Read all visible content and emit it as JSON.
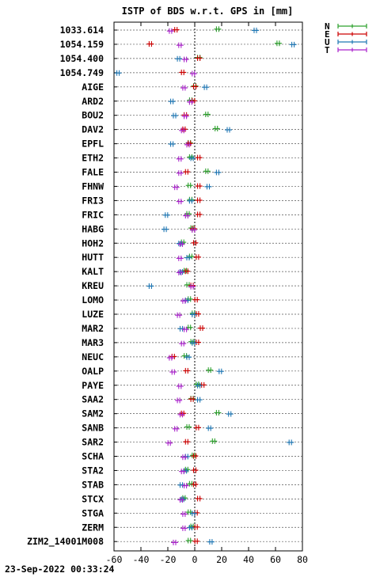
{
  "chart_data": {
    "type": "scatter",
    "title": "ISTP of BDS w.r.t. GPS in [mm]",
    "xlabel": "",
    "ylabel": "",
    "xlim": [
      -60,
      80
    ],
    "xticks": [
      -60,
      -40,
      -20,
      0,
      20,
      40,
      60,
      80
    ],
    "zero_line": "dotted",
    "grid": "horizontal dotted",
    "legend_position": "top-right outside",
    "footer": "23-Sep-2022 00:33:24",
    "stations": [
      "1033.614",
      "1054.159",
      "1054.400",
      "1054.749",
      "AIGE",
      "ARD2",
      "BOU2",
      "DAV2",
      "EPFL",
      "ETH2",
      "FALE",
      "FHNW",
      "FRI3",
      "FRIC",
      "HABG",
      "HOH2",
      "HUTT",
      "KALT",
      "KREU",
      "LOMO",
      "LUZE",
      "MAR2",
      "MAR3",
      "NEUC",
      "OALP",
      "PAYE",
      "SAA2",
      "SAM2",
      "SANB",
      "SAR2",
      "SCHA",
      "STA2",
      "STAB",
      "STCX",
      "STGA",
      "ZERM",
      "ZIM2_14001M008"
    ],
    "series": [
      {
        "name": "N",
        "color": "#2ca02c",
        "values": [
          17,
          62,
          3,
          null,
          0,
          -3,
          9,
          16,
          -4,
          -3,
          9,
          -4,
          -3,
          -5,
          -2,
          -9,
          -3,
          -7,
          -5,
          -4,
          -1,
          -4,
          -2,
          -7,
          11,
          2,
          -2,
          17,
          -5,
          14,
          -1,
          -6,
          -3,
          -8,
          -4,
          -2,
          -4
        ]
      },
      {
        "name": "E",
        "color": "#cc0000",
        "values": [
          -14,
          -33,
          3,
          -9,
          0,
          -1,
          -7,
          -8,
          -4,
          3,
          -6,
          3,
          3,
          3,
          -1,
          0,
          2,
          -6,
          -2,
          1,
          2,
          5,
          2,
          -16,
          -6,
          6,
          -2,
          -9,
          2,
          -6,
          0,
          0,
          0,
          3,
          1,
          1,
          1
        ]
      },
      {
        "name": "U",
        "color": "#1f77b4",
        "values": [
          45,
          73,
          -12,
          -57,
          8,
          -17,
          -15,
          25,
          -17,
          -2,
          17,
          10,
          -3,
          -21,
          -22,
          -11,
          -5,
          -10,
          -33,
          -6,
          -1,
          -10,
          -1,
          -5,
          19,
          3,
          3,
          26,
          11,
          71,
          -6,
          -7,
          -10,
          -9,
          -1,
          -3,
          12
        ]
      },
      {
        "name": "T",
        "color": "#aa22cc",
        "values": [
          -18,
          -11,
          -7,
          -1,
          -8,
          -3,
          -7,
          -9,
          -5,
          -11,
          -11,
          -14,
          -11,
          -6,
          -1,
          -10,
          -11,
          -11,
          -2,
          -8,
          -12,
          -7,
          -9,
          -18,
          -16,
          -11,
          -12,
          -10,
          -14,
          -19,
          -8,
          -9,
          -7,
          -10,
          -8,
          -8,
          -15
        ]
      }
    ]
  }
}
